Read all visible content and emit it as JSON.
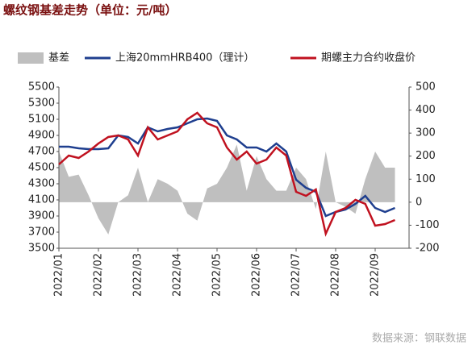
{
  "chart_data": {
    "type": "line",
    "title": "螺纹钢基差走势（单位：元/吨）",
    "source": "数据来源：钢联数据",
    "categories": [
      "2022/01",
      null,
      null,
      null,
      "2022/02",
      null,
      null,
      null,
      "2022/03",
      null,
      null,
      null,
      "2022/04",
      null,
      null,
      null,
      "2022/05",
      null,
      null,
      null,
      "2022/06",
      null,
      null,
      null,
      "2022/07",
      null,
      null,
      null,
      "2022/08",
      null,
      null,
      null,
      "2022/09",
      null,
      null
    ],
    "series": [
      {
        "name": "基差",
        "kind": "area",
        "axis": "y2",
        "color": "#bfbfbf",
        "values": [
          220,
          110,
          120,
          30,
          -70,
          -140,
          0,
          30,
          150,
          0,
          100,
          80,
          50,
          -50,
          -80,
          60,
          80,
          150,
          250,
          50,
          200,
          100,
          50,
          50,
          150,
          100,
          -30,
          220,
          0,
          -20,
          -50,
          100,
          220,
          150,
          150
        ]
      },
      {
        "name": "上海20mmHRB400（理计）",
        "kind": "line",
        "color": "#1f3f8f",
        "values": [
          4760,
          4760,
          4740,
          4730,
          4730,
          4740,
          4900,
          4880,
          4800,
          5000,
          4950,
          4980,
          5000,
          5050,
          5100,
          5110,
          5080,
          4900,
          4850,
          4750,
          4750,
          4700,
          4800,
          4700,
          4350,
          4250,
          4200,
          3900,
          3950,
          3980,
          4050,
          4150,
          4000,
          3950,
          4000
        ]
      },
      {
        "name": "期螺主力合约收盘价",
        "kind": "line",
        "color": "#c0111f",
        "values": [
          4540,
          4650,
          4620,
          4700,
          4800,
          4880,
          4900,
          4850,
          4650,
          5000,
          4850,
          4900,
          4950,
          5100,
          5180,
          5050,
          5000,
          4750,
          4600,
          4700,
          4550,
          4600,
          4750,
          4650,
          4200,
          4150,
          4230,
          3680,
          3950,
          4000,
          4100,
          4050,
          3780,
          3800,
          3850
        ]
      }
    ],
    "ylim": [
      3500,
      5500
    ],
    "yticks": [
      3500,
      3700,
      3900,
      4100,
      4300,
      4500,
      4700,
      4900,
      5100,
      5300,
      5500
    ],
    "y2lim": [
      -200,
      500
    ],
    "y2ticks": [
      -200,
      -100,
      0,
      100,
      200,
      300,
      400,
      500
    ],
    "legend": "top"
  }
}
